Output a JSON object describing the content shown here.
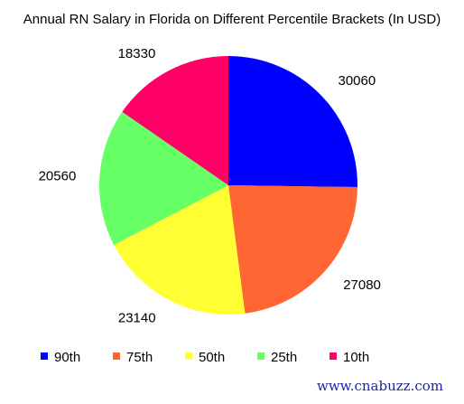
{
  "chart_data": {
    "type": "pie",
    "title": "Annual RN Salary in Florida on Different Percentile Brackets (In USD)",
    "categories": [
      "90th",
      "75th",
      "50th",
      "25th",
      "10th"
    ],
    "values": [
      30060,
      27080,
      23140,
      20560,
      18330
    ],
    "colors": [
      "#0000ff",
      "#ff6633",
      "#ffff33",
      "#66ff66",
      "#ff0066"
    ],
    "legend_position": "bottom",
    "data_labels": true
  },
  "watermark": "www.cnabuzz.com"
}
